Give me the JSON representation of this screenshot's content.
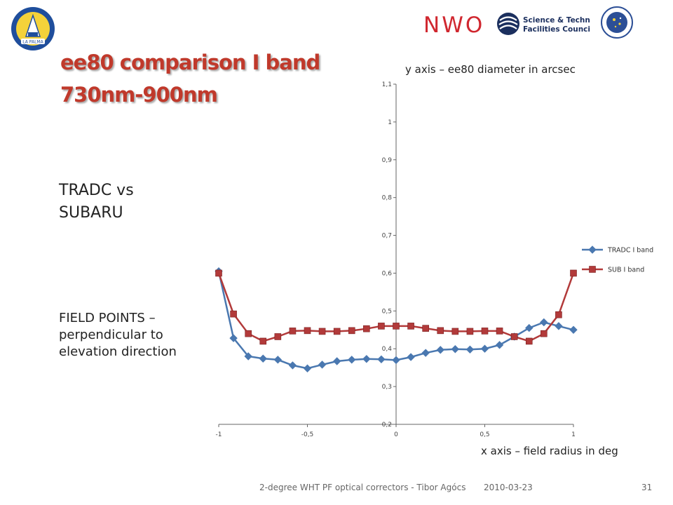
{
  "slide": {
    "title_line1": "ee80 comparison I band",
    "title_line2": "730nm-900nm",
    "side_heading": "TRADC vs SUBARU",
    "side_note": "FIELD POINTS – perpendicular to elevation direction",
    "y_axis_note": "y axis – ee80 diameter in arcsec",
    "x_axis_note": "x axis – field radius in deg",
    "footer_text": "2-degree WHT PF optical correctors - Tibor Agócs",
    "footer_date": "2010-03-23",
    "page_number": "31"
  },
  "logos": {
    "left_seal_text": "LA PALMA",
    "nwo": "NWO",
    "stfc_line1": "Science & Technology",
    "stfc_line2": "Facilities Council"
  },
  "colors": {
    "title": "#c0392b",
    "series_tradc": "#4a78b0",
    "series_sub": "#b23a3a",
    "axis": "#666666"
  },
  "chart_data": {
    "type": "line",
    "xlim": [
      -1,
      1
    ],
    "ylim": [
      0.2,
      1.1
    ],
    "x_ticks": [
      "-1",
      "-0,5",
      "0",
      "0,5",
      "1"
    ],
    "x_tick_values": [
      -1,
      -0.5,
      0,
      0.5,
      1
    ],
    "y_ticks": [
      "0,2",
      "0,3",
      "0,4",
      "0,5",
      "0,6",
      "0,7",
      "0,8",
      "0,9",
      "1",
      "1,1"
    ],
    "y_tick_values": [
      0.2,
      0.3,
      0.4,
      0.5,
      0.6,
      0.7,
      0.8,
      0.9,
      1.0,
      1.1
    ],
    "grid": false,
    "legend": "right",
    "x": [
      -1,
      -0.9167,
      -0.8333,
      -0.75,
      -0.6667,
      -0.5833,
      -0.5,
      -0.4167,
      -0.3333,
      -0.25,
      -0.1667,
      -0.0833,
      0,
      0.0833,
      0.1667,
      0.25,
      0.3333,
      0.4167,
      0.5,
      0.5833,
      0.6667,
      0.75,
      0.8333,
      0.9167,
      1
    ],
    "series": [
      {
        "name": "TRADC I band",
        "marker": "diamond",
        "values": [
          0.605,
          0.428,
          0.38,
          0.374,
          0.371,
          0.356,
          0.348,
          0.358,
          0.367,
          0.371,
          0.373,
          0.372,
          0.37,
          0.378,
          0.389,
          0.397,
          0.399,
          0.398,
          0.4,
          0.41,
          0.432,
          0.455,
          0.47,
          0.46,
          0.45
        ]
      },
      {
        "name": "SUB I band",
        "marker": "square",
        "values": [
          0.6,
          0.492,
          0.44,
          0.42,
          0.432,
          0.447,
          0.448,
          0.446,
          0.446,
          0.448,
          0.453,
          0.46,
          0.46,
          0.46,
          0.454,
          0.448,
          0.446,
          0.446,
          0.447,
          0.447,
          0.432,
          0.42,
          0.44,
          0.49,
          0.6
        ]
      }
    ]
  }
}
